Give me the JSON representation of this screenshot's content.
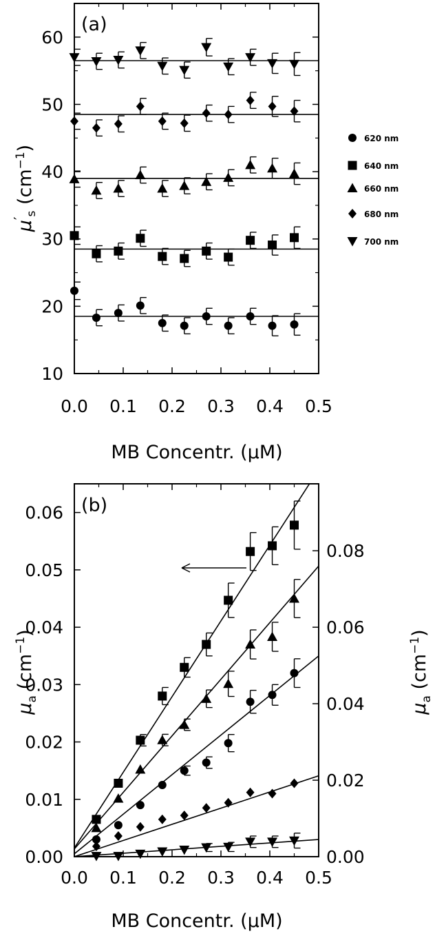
{
  "chart_data": [
    {
      "type": "scatter",
      "panel_label": "(a)",
      "xlabel": "MB  Concentr.  (μM)",
      "ylabel": "μ′s  (cm⁻¹)",
      "xlim": [
        0.0,
        0.5
      ],
      "ylim": [
        10,
        65
      ],
      "x_ticks": [
        "0.0",
        "0.1",
        "0.2",
        "0.3",
        "0.4",
        "0.5"
      ],
      "y_ticks": [
        "10",
        "20",
        "30",
        "40",
        "50",
        "60"
      ],
      "x_tick_values": [
        0.0,
        0.1,
        0.2,
        0.3,
        0.4,
        0.5
      ],
      "y_tick_values": [
        10,
        20,
        30,
        40,
        50,
        60
      ],
      "legend": {
        "placement": "right",
        "entries": [
          {
            "label": "620 nm",
            "marker": "circle"
          },
          {
            "label": "640 nm",
            "marker": "square"
          },
          {
            "label": "660 nm",
            "marker": "triangle-up"
          },
          {
            "label": "680 nm",
            "marker": "diamond"
          },
          {
            "label": "700 nm",
            "marker": "triangle-down"
          }
        ]
      },
      "series": [
        {
          "marker": "circle",
          "fit": 18.5,
          "points": [
            [
              0.0,
              22.3,
              1.3
            ],
            [
              0.045,
              18.3,
              1.2
            ],
            [
              0.09,
              19.0,
              1.2
            ],
            [
              0.135,
              20.1,
              1.2
            ],
            [
              0.18,
              17.5,
              1.2
            ],
            [
              0.225,
              17.1,
              1.2
            ],
            [
              0.27,
              18.5,
              1.2
            ],
            [
              0.315,
              17.1,
              1.2
            ],
            [
              0.36,
              18.5,
              1.2
            ],
            [
              0.405,
              17.1,
              1.5
            ],
            [
              0.45,
              17.3,
              1.6
            ]
          ]
        },
        {
          "marker": "square",
          "fit": 28.5,
          "points": [
            [
              0.0,
              30.5,
              1.3
            ],
            [
              0.045,
              27.8,
              1.2
            ],
            [
              0.09,
              28.2,
              1.2
            ],
            [
              0.135,
              30.1,
              1.2
            ],
            [
              0.18,
              27.4,
              1.2
            ],
            [
              0.225,
              27.1,
              1.2
            ],
            [
              0.27,
              28.2,
              1.2
            ],
            [
              0.315,
              27.3,
              1.2
            ],
            [
              0.36,
              29.8,
              1.2
            ],
            [
              0.405,
              29.1,
              1.5
            ],
            [
              0.45,
              30.2,
              1.6
            ]
          ]
        },
        {
          "marker": "triangle-up",
          "fit": 39.0,
          "points": [
            [
              0.0,
              38.9,
              1.2
            ],
            [
              0.045,
              37.2,
              1.2
            ],
            [
              0.09,
              37.5,
              1.2
            ],
            [
              0.135,
              39.5,
              1.2
            ],
            [
              0.18,
              37.5,
              1.2
            ],
            [
              0.225,
              37.9,
              1.2
            ],
            [
              0.27,
              38.5,
              1.2
            ],
            [
              0.315,
              39.1,
              1.2
            ],
            [
              0.36,
              41.0,
              1.2
            ],
            [
              0.405,
              40.5,
              1.5
            ],
            [
              0.45,
              39.7,
              1.6
            ]
          ]
        },
        {
          "marker": "diamond",
          "fit": 48.5,
          "points": [
            [
              0.0,
              47.5,
              1.2
            ],
            [
              0.045,
              46.5,
              1.2
            ],
            [
              0.09,
              47.1,
              1.2
            ],
            [
              0.135,
              49.7,
              1.2
            ],
            [
              0.18,
              47.5,
              1.2
            ],
            [
              0.225,
              47.2,
              1.2
            ],
            [
              0.27,
              48.7,
              1.2
            ],
            [
              0.315,
              48.5,
              1.2
            ],
            [
              0.36,
              50.6,
              1.2
            ],
            [
              0.405,
              49.7,
              1.5
            ],
            [
              0.45,
              49.0,
              1.6
            ]
          ]
        },
        {
          "marker": "triangle-down",
          "fit": 56.5,
          "points": [
            [
              0.0,
              57.0,
              1.2
            ],
            [
              0.045,
              56.4,
              1.2
            ],
            [
              0.09,
              56.6,
              1.2
            ],
            [
              0.135,
              58.0,
              1.2
            ],
            [
              0.18,
              55.7,
              1.2
            ],
            [
              0.225,
              55.1,
              1.2
            ],
            [
              0.27,
              58.5,
              1.3
            ],
            [
              0.315,
              55.6,
              1.2
            ],
            [
              0.36,
              57.0,
              1.2
            ],
            [
              0.405,
              56.1,
              1.5
            ],
            [
              0.45,
              56.0,
              1.7
            ]
          ]
        }
      ]
    },
    {
      "type": "scatter",
      "panel_label": "(b)",
      "xlabel": "MB  Concentr.  (μM)",
      "ylabel": "μa  (cm⁻¹)",
      "ylabel_right": "μa  (cm⁻¹)",
      "xlim": [
        0.0,
        0.5
      ],
      "ylim": [
        0.0,
        0.065
      ],
      "ylim_right": [
        0.0,
        0.0975
      ],
      "x_ticks": [
        "0.0",
        "0.1",
        "0.2",
        "0.3",
        "0.4",
        "0.5"
      ],
      "y_ticks": [
        "0.00",
        "0.01",
        "0.02",
        "0.03",
        "0.04",
        "0.05",
        "0.06"
      ],
      "y_ticks_right": [
        "0.00",
        "0.02",
        "0.04",
        "0.06",
        "0.08"
      ],
      "x_tick_values": [
        0.0,
        0.1,
        0.2,
        0.3,
        0.4,
        0.5
      ],
      "y_tick_values": [
        0.0,
        0.01,
        0.02,
        0.03,
        0.04,
        0.05,
        0.06
      ],
      "y_tick_values_right": [
        0.0,
        0.02,
        0.04,
        0.06,
        0.08
      ],
      "annotation": "arrow pointing left to left axis (square series)",
      "series": [
        {
          "marker": "square",
          "axis": "left",
          "fit": [
            0.0015,
            0.132
          ],
          "points": [
            [
              0.045,
              0.0065,
              0.0
            ],
            [
              0.09,
              0.0128,
              0.0
            ],
            [
              0.135,
              0.0203,
              0.001
            ],
            [
              0.18,
              0.028,
              0.0015
            ],
            [
              0.225,
              0.033,
              0.0017
            ],
            [
              0.27,
              0.037,
              0.002
            ],
            [
              0.315,
              0.0447,
              0.003
            ],
            [
              0.36,
              0.0532,
              0.0033
            ],
            [
              0.405,
              0.0542,
              0.0033
            ],
            [
              0.45,
              0.0578,
              0.0042
            ]
          ]
        },
        {
          "marker": "triangle-up",
          "axis": "right",
          "fit": [
            0.002,
            0.148
          ],
          "points": [
            [
              0.045,
              0.0075,
              0.0
            ],
            [
              0.09,
              0.0152,
              0.0
            ],
            [
              0.135,
              0.0228,
              0.0
            ],
            [
              0.18,
              0.0305,
              0.0015
            ],
            [
              0.225,
              0.0345,
              0.0015
            ],
            [
              0.27,
              0.0413,
              0.0023
            ],
            [
              0.315,
              0.0452,
              0.0033
            ],
            [
              0.36,
              0.0555,
              0.0038
            ],
            [
              0.405,
              0.0575,
              0.0038
            ],
            [
              0.45,
              0.0675,
              0.005
            ]
          ]
        },
        {
          "marker": "circle",
          "axis": "left",
          "fit": [
            0.0005,
            0.069
          ],
          "points": [
            [
              0.045,
              0.003,
              0.0
            ],
            [
              0.09,
              0.0055,
              0.0
            ],
            [
              0.135,
              0.009,
              0.0
            ],
            [
              0.18,
              0.0125,
              0.0
            ],
            [
              0.225,
              0.015,
              0.0008
            ],
            [
              0.27,
              0.0164,
              0.001
            ],
            [
              0.315,
              0.0198,
              0.0015
            ],
            [
              0.36,
              0.027,
              0.002
            ],
            [
              0.405,
              0.0282,
              0.0018
            ],
            [
              0.45,
              0.032,
              0.0025
            ]
          ]
        },
        {
          "marker": "diamond",
          "axis": "left",
          "fit": [
            0.0,
            0.0282
          ],
          "points": [
            [
              0.045,
              0.0018,
              0.0
            ],
            [
              0.09,
              0.0036,
              0.0
            ],
            [
              0.135,
              0.0052,
              0.0
            ],
            [
              0.18,
              0.0065,
              0.0
            ],
            [
              0.225,
              0.0072,
              0.0
            ],
            [
              0.27,
              0.0085,
              0.0
            ],
            [
              0.315,
              0.0094,
              0.0
            ],
            [
              0.36,
              0.0112,
              0.0
            ],
            [
              0.405,
              0.011,
              0.0
            ],
            [
              0.45,
              0.0128,
              0.0
            ]
          ]
        },
        {
          "marker": "triangle-down",
          "axis": "left",
          "fit": [
            0.0,
            0.006
          ],
          "points": [
            [
              0.045,
              0.0001,
              0.0
            ],
            [
              0.09,
              0.0001,
              0.0
            ],
            [
              0.135,
              0.0005,
              0.0
            ],
            [
              0.18,
              0.0009,
              0.0
            ],
            [
              0.225,
              0.0012,
              0.0
            ],
            [
              0.27,
              0.0016,
              0.0007
            ],
            [
              0.315,
              0.0017,
              0.0008
            ],
            [
              0.36,
              0.0026,
              0.001
            ],
            [
              0.405,
              0.0026,
              0.001
            ],
            [
              0.45,
              0.0028,
              0.0013
            ]
          ]
        }
      ]
    }
  ]
}
